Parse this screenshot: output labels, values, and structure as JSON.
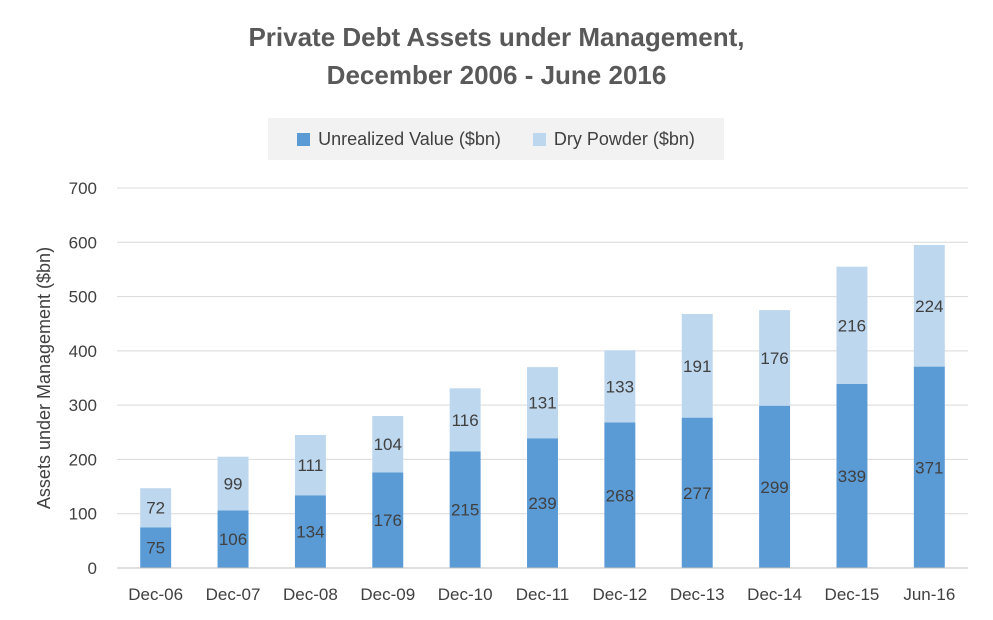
{
  "chart_data": {
    "type": "bar",
    "stacked": true,
    "title_lines": [
      "Private Debt Assets under Management,",
      "December 2006 - June 2016"
    ],
    "xlabel": "",
    "ylabel": "Assets under Management ($bn)",
    "ylim": [
      0,
      700
    ],
    "yticks": [
      0,
      100,
      200,
      300,
      400,
      500,
      600,
      700
    ],
    "grid": true,
    "legend_position": "top",
    "categories": [
      "Dec-06",
      "Dec-07",
      "Dec-08",
      "Dec-09",
      "Dec-10",
      "Dec-11",
      "Dec-12",
      "Dec-13",
      "Dec-14",
      "Dec-15",
      "Jun-16"
    ],
    "series": [
      {
        "name": "Unrealized Value ($bn)",
        "color": "#5b9bd5",
        "values": [
          75,
          106,
          134,
          176,
          215,
          239,
          268,
          277,
          299,
          339,
          371
        ]
      },
      {
        "name": "Dry Powder ($bn)",
        "color": "#bdd7ee",
        "values": [
          72,
          99,
          111,
          104,
          116,
          131,
          133,
          191,
          176,
          216,
          224
        ]
      }
    ]
  }
}
